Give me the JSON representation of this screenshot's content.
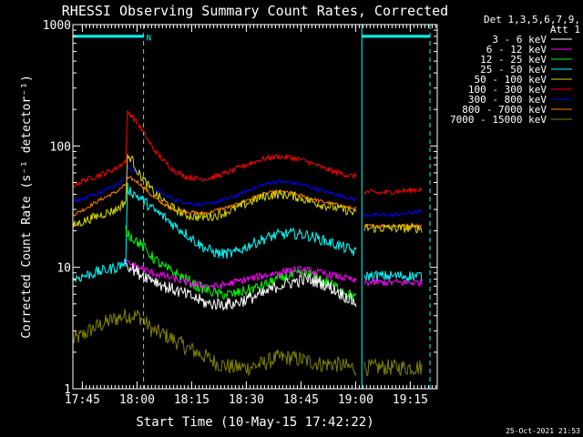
{
  "chart_data": {
    "type": "line",
    "title": "RHESSI Observing Summary Count Rates, Corrected",
    "xlabel": "Start Time (10-May-15 17:42:22)",
    "ylabel": "Corrected Count Rate (s⁻¹ detector⁻¹)",
    "yscale": "log",
    "ylim": [
      1,
      1000
    ],
    "xlim_minutes": [
      0,
      100
    ],
    "x_ticks": [
      {
        "label": "17:45",
        "t": 2.6
      },
      {
        "label": "18:00",
        "t": 17.6
      },
      {
        "label": "18:15",
        "t": 32.6
      },
      {
        "label": "18:30",
        "t": 47.6
      },
      {
        "label": "18:45",
        "t": 62.6
      },
      {
        "label": "19:00",
        "t": 77.6
      },
      {
        "label": "19:15",
        "t": 92.6
      }
    ],
    "y_ticks": [
      {
        "label": "1",
        "v": 1
      },
      {
        "label": "10",
        "v": 10
      },
      {
        "label": "100",
        "v": 100
      },
      {
        "label": "1000",
        "v": 1000
      }
    ],
    "grid": false,
    "legend_position": "right",
    "legend_header": [
      "Det 1,3,5,6,7,9,",
      "Att 1"
    ],
    "annotations": [
      {
        "text": "N",
        "t": 19.4,
        "v": 850
      }
    ],
    "series": [
      {
        "name": "3 - 6 keV",
        "color": "#ffffff",
        "noise": 0.7,
        "x": [
          14.5,
          16,
          18,
          20,
          22,
          25,
          28,
          31,
          34,
          37,
          40,
          44,
          48,
          52,
          56,
          60,
          64,
          68,
          72,
          76,
          78,
          79,
          80,
          84,
          88,
          92,
          96
        ],
        "y": [
          11,
          10,
          9,
          8.5,
          8,
          7,
          6.5,
          6,
          5.5,
          5,
          5,
          5,
          5.5,
          6,
          7,
          7.5,
          8,
          7.5,
          6.5,
          5.5,
          5,
          null,
          null,
          null,
          null,
          null,
          null
        ]
      },
      {
        "name": "6 - 12 keV",
        "color": "#ff00ff",
        "noise": 0.4,
        "x": [
          14.5,
          16,
          18,
          20,
          22,
          25,
          28,
          31,
          34,
          37,
          40,
          44,
          48,
          52,
          56,
          60,
          64,
          68,
          72,
          76,
          78,
          79,
          80,
          84,
          88,
          92,
          96
        ],
        "y": [
          11,
          10.5,
          10,
          9.5,
          9,
          8.5,
          8,
          7.5,
          7.2,
          7,
          7,
          7.5,
          8,
          8.5,
          9,
          9.5,
          9.5,
          9,
          8.5,
          8,
          7.5,
          null,
          7.5,
          7.5,
          7.5,
          7.5,
          7.5
        ]
      },
      {
        "name": "12 - 25 keV",
        "color": "#00ff00",
        "noise": 0.6,
        "x": [
          14.5,
          16,
          18,
          20,
          22,
          25,
          28,
          31,
          34,
          37,
          40,
          44,
          48,
          52,
          56,
          60,
          64,
          68,
          72,
          76,
          78,
          79,
          80,
          84,
          88,
          92,
          96
        ],
        "y": [
          20,
          18,
          16,
          14,
          12,
          10,
          9,
          8,
          7,
          6.5,
          6,
          6,
          6.5,
          7,
          8,
          8.5,
          9,
          8,
          7,
          6,
          5.5,
          null,
          null,
          null,
          null,
          null,
          null
        ]
      },
      {
        "name": "25 - 50 keV",
        "color": "#00ffff",
        "noise": 0.6,
        "x": [
          0,
          3,
          6,
          9,
          12,
          14.5,
          15,
          16,
          18,
          20,
          22,
          25,
          28,
          31,
          34,
          37,
          40,
          44,
          48,
          52,
          56,
          60,
          64,
          68,
          72,
          76,
          78,
          79,
          80,
          84,
          88,
          92,
          96
        ],
        "y": [
          8,
          8.5,
          9,
          9.5,
          10,
          11,
          45,
          42,
          38,
          34,
          30,
          26,
          22,
          19,
          16,
          14,
          13,
          13,
          15,
          17,
          18.5,
          19,
          18.5,
          17,
          15.5,
          14,
          13,
          null,
          8.5,
          8.5,
          8.5,
          8.5,
          8.5
        ]
      },
      {
        "name": "50 - 100 keV",
        "color": "#d8d800",
        "noise": 0.5,
        "x": [
          0,
          3,
          6,
          9,
          12,
          14.5,
          15,
          16,
          18,
          20,
          22,
          25,
          28,
          31,
          34,
          37,
          40,
          44,
          48,
          52,
          56,
          60,
          64,
          68,
          72,
          76,
          78,
          79,
          80,
          84,
          88,
          92,
          96
        ],
        "y": [
          22,
          24,
          26,
          28,
          30,
          35,
          80,
          80,
          60,
          50,
          42,
          35,
          30,
          27,
          26,
          26,
          27,
          30,
          34,
          38,
          40,
          39,
          36,
          33,
          31,
          29,
          27,
          null,
          21,
          21,
          21,
          21,
          21
        ]
      },
      {
        "name": "100 - 300 keV",
        "color": "#ff0000",
        "noise": 0.3,
        "x": [
          0,
          3,
          6,
          9,
          12,
          14.5,
          15,
          16,
          18,
          20,
          22,
          25,
          28,
          31,
          34,
          37,
          40,
          44,
          48,
          52,
          56,
          60,
          64,
          68,
          72,
          76,
          78,
          79,
          80,
          84,
          88,
          92,
          96
        ],
        "y": [
          47,
          52,
          56,
          60,
          66,
          75,
          190,
          180,
          150,
          120,
          95,
          75,
          62,
          56,
          54,
          54,
          57,
          63,
          71,
          78,
          82,
          80,
          75,
          67,
          61,
          57,
          56,
          null,
          42,
          41,
          42,
          43,
          44
        ]
      },
      {
        "name": "300 - 800 keV",
        "color": "#0000ff",
        "noise": 0.2,
        "x": [
          0,
          3,
          6,
          9,
          12,
          14.5,
          15,
          16,
          18,
          20,
          22,
          25,
          28,
          31,
          34,
          37,
          40,
          44,
          48,
          52,
          56,
          60,
          64,
          68,
          72,
          76,
          78,
          79,
          80,
          84,
          88,
          92,
          96
        ],
        "y": [
          35,
          37,
          40,
          44,
          48,
          55,
          66,
          65,
          60,
          52,
          45,
          40,
          36,
          34,
          33,
          33,
          35,
          38,
          43,
          48,
          51,
          50,
          47,
          43,
          40,
          37,
          36,
          null,
          27,
          27,
          27,
          28,
          29
        ]
      },
      {
        "name": "800 - 7000 keV",
        "color": "#ff8000",
        "noise": 0.2,
        "x": [
          0,
          3,
          6,
          9,
          12,
          14.5,
          15,
          16,
          18,
          20,
          22,
          25,
          28,
          31,
          34,
          37,
          40,
          44,
          48,
          52,
          56,
          60,
          64,
          68,
          72,
          76,
          78,
          79,
          80,
          84,
          88,
          92,
          96
        ],
        "y": [
          27,
          30,
          34,
          38,
          42,
          48,
          54,
          54,
          50,
          44,
          38,
          33,
          30,
          29,
          28,
          28,
          30,
          32,
          36,
          40,
          42,
          41,
          38,
          35,
          33,
          31,
          30,
          null,
          22,
          22,
          22,
          22,
          22
        ]
      },
      {
        "name": "7000 - 15000 keV",
        "color": "#808000",
        "noise": 0.9,
        "x": [
          0,
          3,
          6,
          9,
          12,
          14.5,
          15,
          16,
          18,
          20,
          22,
          25,
          28,
          31,
          34,
          37,
          40,
          44,
          48,
          52,
          56,
          60,
          64,
          68,
          72,
          76,
          78,
          79,
          80,
          84,
          88,
          92,
          96
        ],
        "y": [
          2.5,
          2.8,
          3.2,
          3.5,
          3.8,
          4,
          4,
          4,
          4,
          3.5,
          3,
          2.8,
          2.5,
          2.2,
          2,
          1.8,
          1.6,
          1.5,
          1.5,
          1.6,
          1.8,
          1.8,
          1.7,
          1.6,
          1.6,
          1.5,
          1.5,
          null,
          1.5,
          1.5,
          1.5,
          1.5,
          1.5
        ]
      }
    ],
    "night_bars": [
      {
        "start": 0,
        "end": 19.4,
        "v": 800
      },
      {
        "start": 79.3,
        "end": 98,
        "v": 800
      }
    ],
    "vertical_markers": [
      {
        "t": 0,
        "style": "solid",
        "color": "#00ffff"
      },
      {
        "t": 19.4,
        "style": "dashed",
        "color": "#00ffff"
      },
      {
        "t": 79.3,
        "style": "solid",
        "color": "#00ffff"
      },
      {
        "t": 98,
        "style": "dashed",
        "color": "#00ffff"
      }
    ]
  },
  "footer_timestamp": "25-Oct-2021 21:53"
}
